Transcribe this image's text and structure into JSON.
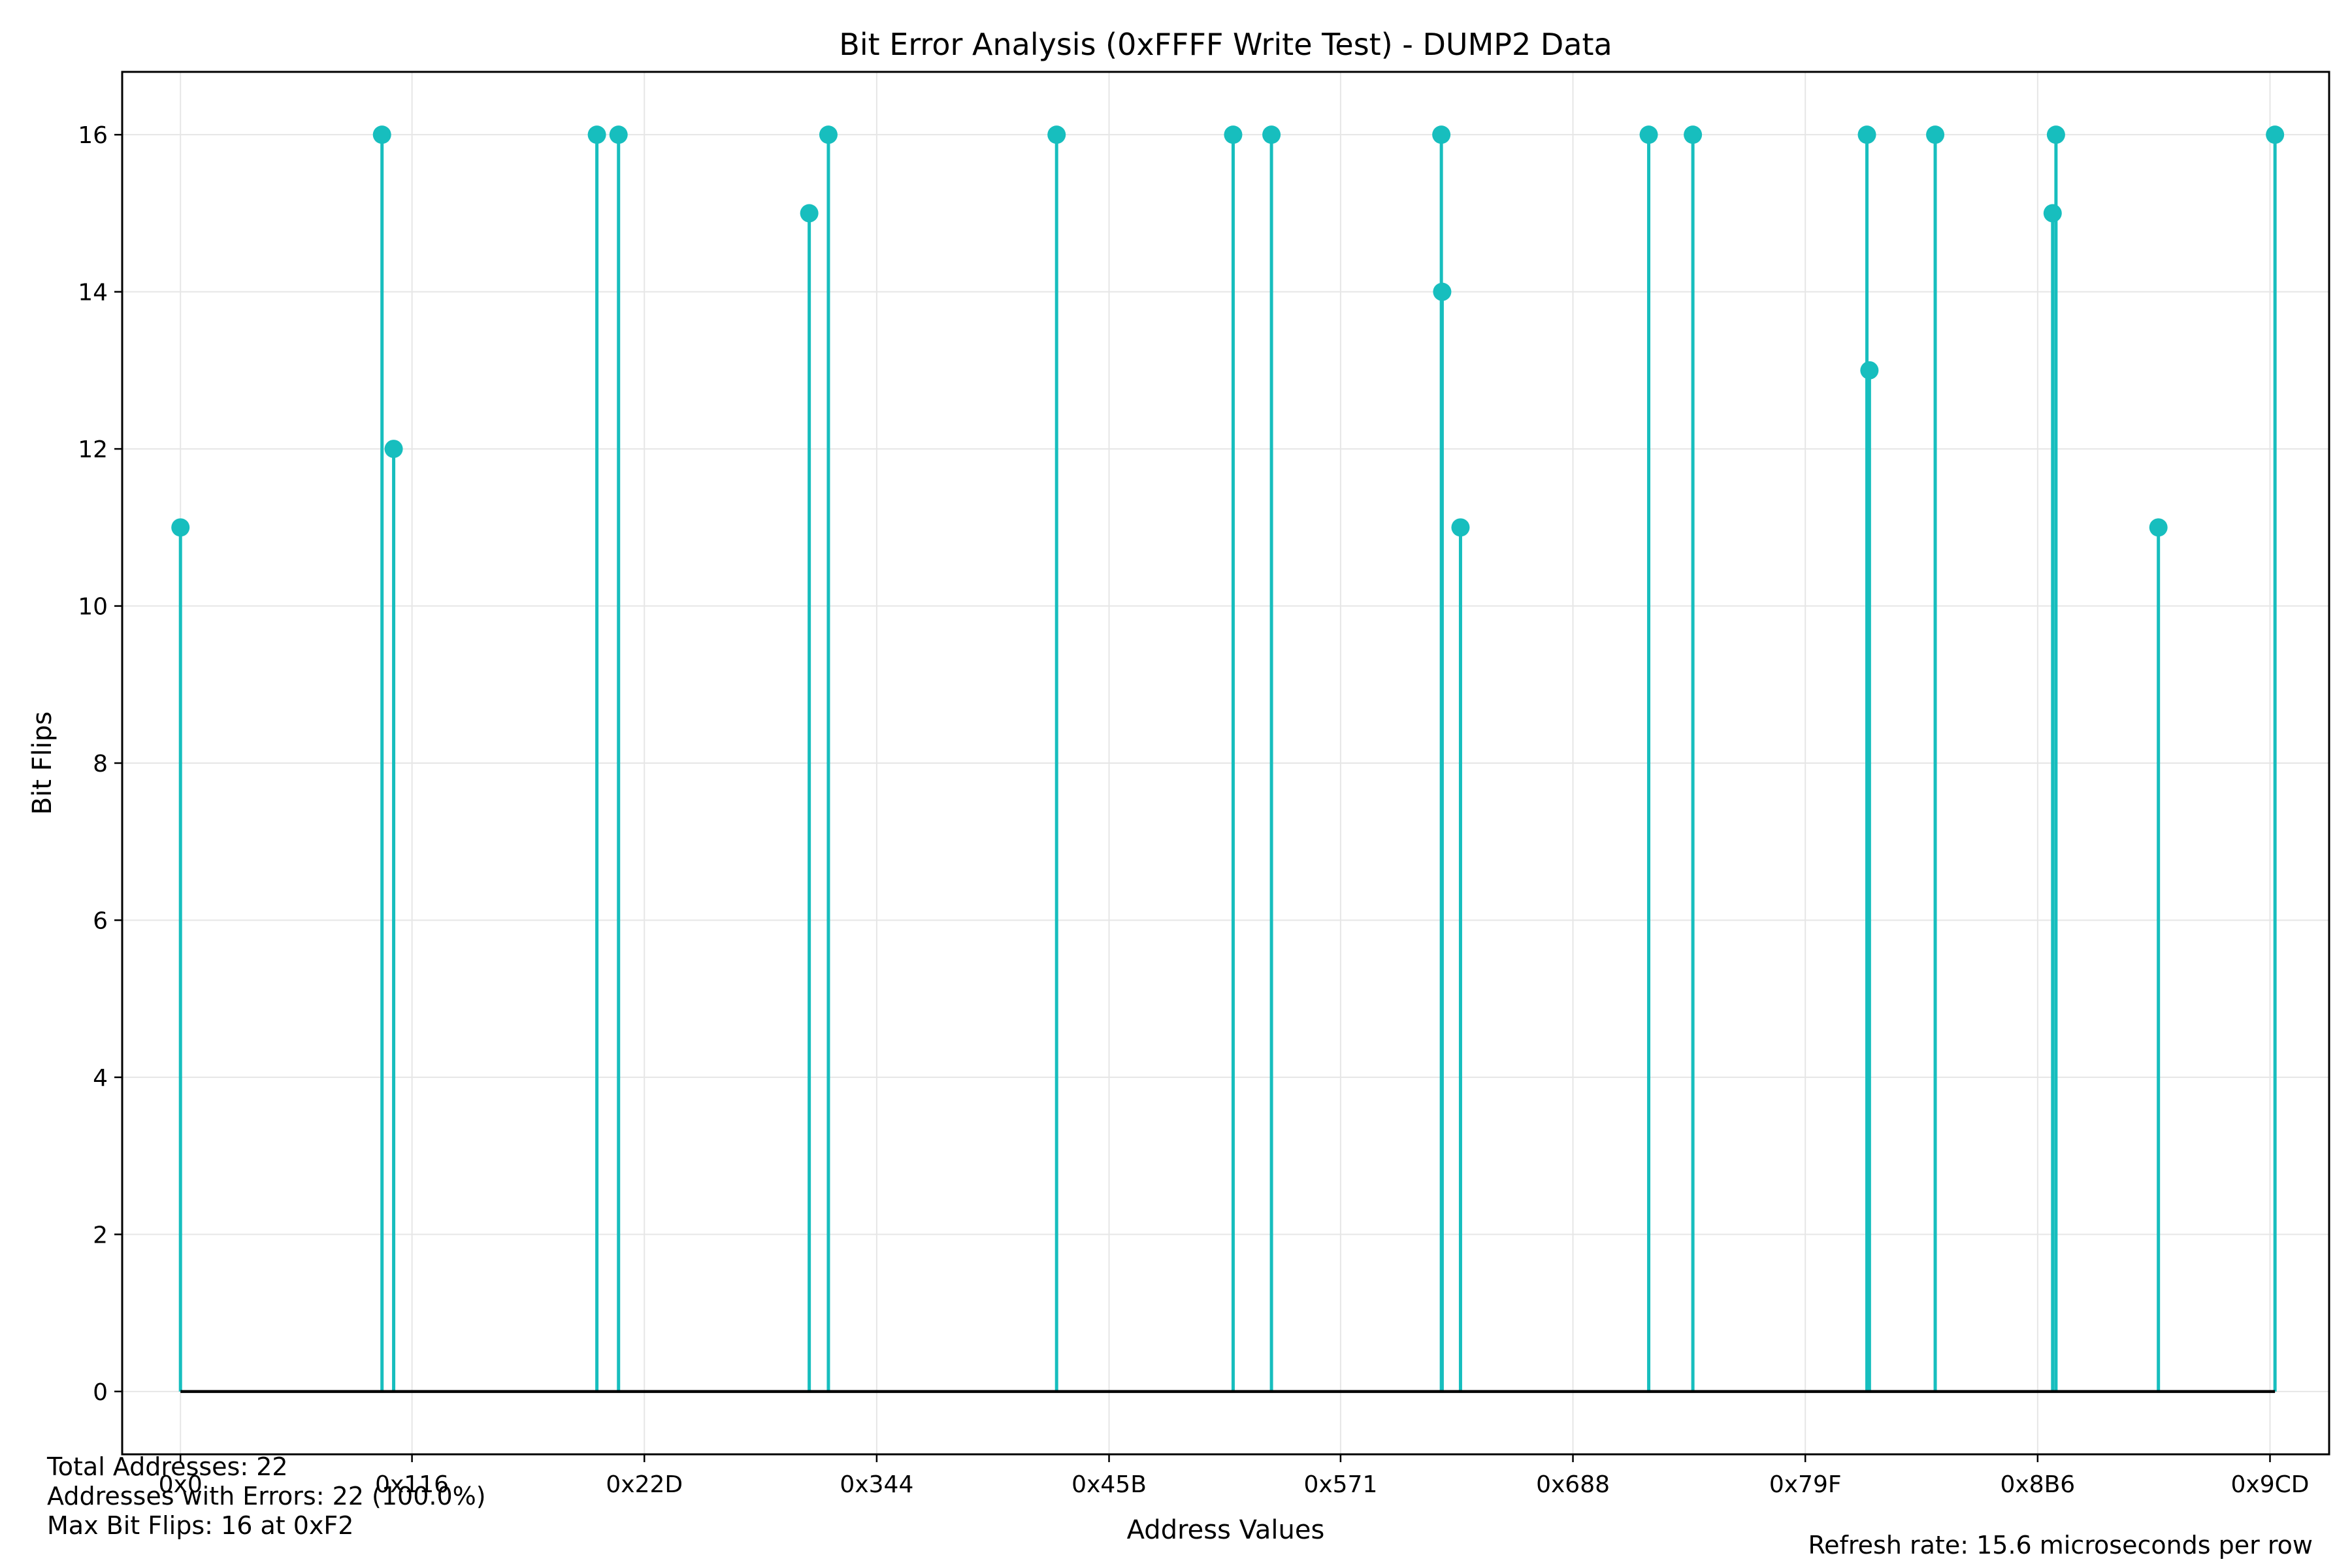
{
  "chart_data": {
    "type": "stem",
    "title": "Bit Error Analysis (0xFFFF Write Test) - DUMP2 Data",
    "xlabel": "Address Values",
    "ylabel": "Bit Flips",
    "x_tick_labels": [
      "0x0",
      "0x116",
      "0x22D",
      "0x344",
      "0x45B",
      "0x571",
      "0x688",
      "0x79F",
      "0x8B6",
      "0x9CD"
    ],
    "x_ticks": [
      0,
      278,
      557,
      836,
      1115,
      1393,
      1672,
      1951,
      2230,
      2509
    ],
    "y_ticks": [
      0,
      2,
      4,
      6,
      8,
      10,
      12,
      14,
      16
    ],
    "xlim": [
      -70,
      2580
    ],
    "ylim": [
      -0.8,
      16.8
    ],
    "grid": true,
    "colors": {
      "stem": "#17bebe",
      "marker": "#17bebe",
      "baseline": "#000000",
      "grid": "#e6e6e6"
    },
    "points": [
      {
        "x": 0,
        "y": 11
      },
      {
        "x": 242,
        "y": 16
      },
      {
        "x": 256,
        "y": 12
      },
      {
        "x": 500,
        "y": 16
      },
      {
        "x": 526,
        "y": 16
      },
      {
        "x": 755,
        "y": 15
      },
      {
        "x": 778,
        "y": 16
      },
      {
        "x": 1052,
        "y": 16
      },
      {
        "x": 1264,
        "y": 16
      },
      {
        "x": 1310,
        "y": 16
      },
      {
        "x": 1514,
        "y": 16
      },
      {
        "x": 1515,
        "y": 14
      },
      {
        "x": 1537,
        "y": 11
      },
      {
        "x": 1763,
        "y": 16
      },
      {
        "x": 1816,
        "y": 16
      },
      {
        "x": 2025,
        "y": 16
      },
      {
        "x": 2028,
        "y": 13
      },
      {
        "x": 2107,
        "y": 16
      },
      {
        "x": 2248,
        "y": 15
      },
      {
        "x": 2252,
        "y": 16
      },
      {
        "x": 2375,
        "y": 11
      },
      {
        "x": 2515,
        "y": 16
      }
    ]
  },
  "stats": {
    "total": "Total Addresses: 22",
    "errors": "Addresses with Errors: 22 (100.0%)",
    "max": "Max Bit Flips: 16 at 0xF2"
  },
  "footer": {
    "refresh": "Refresh rate: 15.6 microseconds per row"
  }
}
